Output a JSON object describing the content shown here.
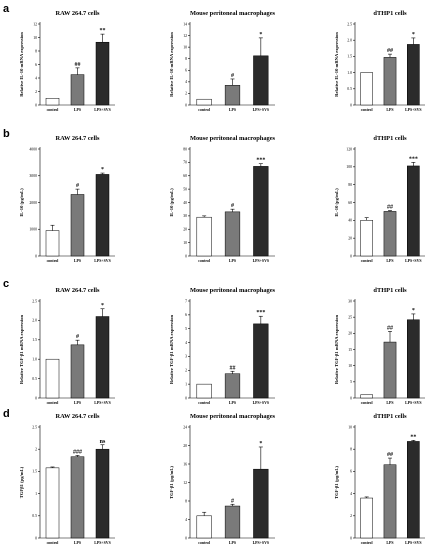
{
  "colors": {
    "control": "#ffffff",
    "LPS": "#7a7a7a",
    "LPS+SVS": "#2b2b2b"
  },
  "panels": [
    {
      "letter": "a"
    },
    {
      "letter": "b"
    },
    {
      "letter": "c"
    },
    {
      "letter": "d"
    }
  ],
  "chart_data": [
    {
      "type": "bar",
      "panel": "a",
      "title": "RAW 264.7 cells",
      "xlabel": "",
      "ylabel": "Relative IL-10 mRNA expression",
      "categories": [
        "control",
        "LPS",
        "LPS+SVS"
      ],
      "values": [
        1.0,
        4.5,
        9.3
      ],
      "errors": [
        0.0,
        1.0,
        1.2
      ],
      "significance": [
        "",
        "##",
        "**"
      ],
      "ylim": [
        0,
        12
      ],
      "yticks": [
        "0",
        "2",
        "4",
        "6",
        "8",
        "10",
        "12"
      ]
    },
    {
      "type": "bar",
      "panel": "a",
      "title": "Mouse peritoneal macrophages",
      "xlabel": "",
      "ylabel": "Relative IL-10 mRNA expression",
      "categories": [
        "control",
        "LPS",
        "LPS+SVS"
      ],
      "values": [
        1.0,
        3.4,
        8.5
      ],
      "errors": [
        0.0,
        1.1,
        3.1
      ],
      "significance": [
        "",
        "#",
        "*"
      ],
      "ylim": [
        0,
        14
      ],
      "yticks": [
        "0",
        "2",
        "4",
        "6",
        "8",
        "10",
        "12",
        "14"
      ]
    },
    {
      "type": "bar",
      "panel": "a",
      "title": "dTHP1 cells",
      "xlabel": "",
      "ylabel": "Relative IL-10 mRNA expression",
      "categories": [
        "control",
        "LPS",
        "LPS+SVS"
      ],
      "values": [
        1.0,
        1.47,
        1.87
      ],
      "errors": [
        0.0,
        0.1,
        0.2
      ],
      "significance": [
        "",
        "##",
        "*"
      ],
      "ylim": [
        0,
        2.5
      ],
      "yticks": [
        "0",
        "0.5",
        "1.0",
        "1.5",
        "2.0",
        "2.5"
      ]
    },
    {
      "type": "bar",
      "panel": "b",
      "title": "RAW 264.7 cells",
      "xlabel": "",
      "ylabel": "IL-10 (pg/mL)",
      "categories": [
        "control",
        "LPS",
        "LPS+SVS"
      ],
      "values": [
        950,
        2300,
        3050
      ],
      "errors": [
        200,
        200,
        50
      ],
      "significance": [
        "",
        "#",
        "*"
      ],
      "ylim": [
        0,
        4000
      ],
      "yticks": [
        "0",
        "1000",
        "2000",
        "3000",
        "4000"
      ]
    },
    {
      "type": "bar",
      "panel": "b",
      "title": "Mouse peritoneal macrophages",
      "xlabel": "",
      "ylabel": "IL-10 (pg/mL)",
      "categories": [
        "control",
        "LPS",
        "LPS+SVS"
      ],
      "values": [
        29,
        33,
        67
      ],
      "errors": [
        1,
        2,
        2
      ],
      "significance": [
        "",
        "#",
        "***"
      ],
      "ylim": [
        0,
        80
      ],
      "yticks": [
        "0",
        "10",
        "20",
        "30",
        "40",
        "50",
        "60",
        "70",
        "80"
      ]
    },
    {
      "type": "bar",
      "panel": "b",
      "title": "dTHP1 cells",
      "xlabel": "",
      "ylabel": "IL-10 (pg/mL)",
      "categories": [
        "control",
        "LPS",
        "LPS+SVS"
      ],
      "values": [
        40,
        50,
        101
      ],
      "errors": [
        3,
        1,
        4
      ],
      "significance": [
        "",
        "##",
        "***"
      ],
      "ylim": [
        0,
        120
      ],
      "yticks": [
        "0",
        "20",
        "40",
        "60",
        "80",
        "100",
        "120"
      ]
    },
    {
      "type": "bar",
      "panel": "c",
      "title": "RAW 264.7 cells",
      "xlabel": "",
      "ylabel": "Relative TGF-β1 mRNA expression",
      "categories": [
        "control",
        "LPS",
        "LPS+SVS"
      ],
      "values": [
        1.0,
        1.37,
        2.1
      ],
      "errors": [
        0.0,
        0.12,
        0.2
      ],
      "significance": [
        "",
        "#",
        "*"
      ],
      "ylim": [
        0,
        2.5
      ],
      "yticks": [
        "0",
        "0.5",
        "1.0",
        "1.5",
        "2.0",
        "2.5"
      ]
    },
    {
      "type": "bar",
      "panel": "c",
      "title": "Mouse peritoneal macrophages",
      "xlabel": "",
      "ylabel": "Relative TGF-β1 mRNA expression",
      "categories": [
        "control",
        "LPS",
        "LPS+SVS"
      ],
      "values": [
        1.0,
        1.75,
        5.35
      ],
      "errors": [
        0.0,
        0.18,
        0.55
      ],
      "significance": [
        "",
        "##",
        "***"
      ],
      "ylim": [
        0,
        7
      ],
      "yticks": [
        "0",
        "1",
        "2",
        "3",
        "4",
        "5",
        "6",
        "7"
      ]
    },
    {
      "type": "bar",
      "panel": "c",
      "title": "dTHP1 cells",
      "xlabel": "",
      "ylabel": "Relative TGF-β1 mRNA expression",
      "categories": [
        "control",
        "LPS",
        "LPS+SVS"
      ],
      "values": [
        1.0,
        17.3,
        24.2
      ],
      "errors": [
        0.0,
        3.3,
        1.8
      ],
      "significance": [
        "",
        "##",
        "*"
      ],
      "ylim": [
        0,
        30
      ],
      "yticks": [
        "0",
        "5",
        "10",
        "15",
        "20",
        "25",
        "30"
      ]
    },
    {
      "type": "bar",
      "panel": "d",
      "title": "RAW 264.7 cells",
      "xlabel": "",
      "ylabel": "TGFβ1 (pg/mL)",
      "categories": [
        "control",
        "LPS",
        "LPS+SVS"
      ],
      "values": [
        1.58,
        1.83,
        2.0
      ],
      "errors": [
        0.02,
        0.03,
        0.1
      ],
      "significance": [
        "",
        "###",
        "ns"
      ],
      "ylim": [
        0,
        2.5
      ],
      "yticks": [
        "0",
        "0.5",
        "1",
        "1.5",
        "2",
        "2.5"
      ]
    },
    {
      "type": "bar",
      "panel": "d",
      "title": "Mouse peritoneal macrophages",
      "xlabel": "",
      "ylabel": "TGF-β1 (pg/mL)",
      "categories": [
        "control",
        "LPS",
        "LPS+SVS"
      ],
      "values": [
        5.0,
        7.2,
        15.5
      ],
      "errors": [
        0.8,
        0.4,
        5.0
      ],
      "significance": [
        "",
        "#",
        "*"
      ],
      "ylim": [
        0,
        25
      ],
      "yticks": [
        "0",
        "4",
        "8",
        "12",
        "16",
        "20",
        "24"
      ]
    },
    {
      "type": "bar",
      "panel": "d",
      "title": "dTHP1 cells",
      "xlabel": "",
      "ylabel": "TGF-β1 (pg/mL)",
      "categories": [
        "control",
        "LPS",
        "LPS+SVS"
      ],
      "values": [
        3.6,
        6.6,
        8.7
      ],
      "errors": [
        0.1,
        0.6,
        0.1
      ],
      "significance": [
        "",
        "##",
        "**"
      ],
      "ylim": [
        0,
        10
      ],
      "yticks": [
        "0",
        "2",
        "4",
        "6",
        "8",
        "10"
      ]
    }
  ]
}
